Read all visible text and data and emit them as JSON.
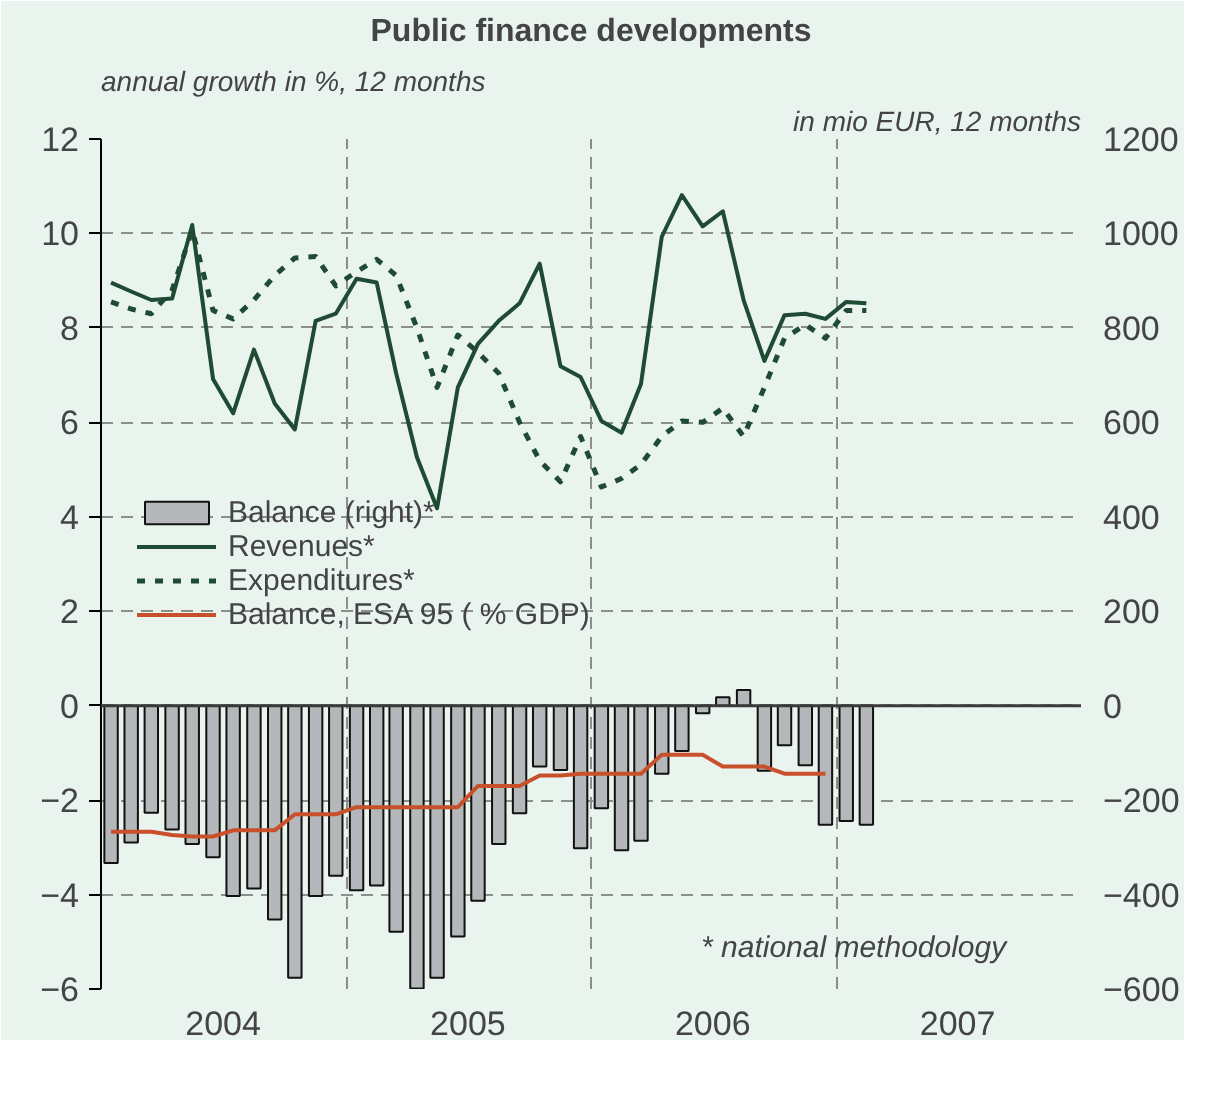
{
  "chart_data": {
    "type": "line",
    "title": "Public finance developments",
    "ylabel": "annual growth in %, 12 months",
    "y2label": "in mio EUR, 12 months",
    "annotations": [
      "* national methodology"
    ],
    "x": [
      "2004-01-16",
      "2004-02-15",
      "2004-03-16",
      "2004-04-16",
      "2004-05-16",
      "2004-06-16",
      "2004-07-16",
      "2004-08-16",
      "2004-09-16",
      "2004-10-16",
      "2004-11-16",
      "2004-12-16",
      "2005-01-16",
      "2005-02-15",
      "2005-03-16",
      "2005-04-16",
      "2005-05-16",
      "2005-06-16",
      "2005-07-16",
      "2005-08-16",
      "2005-09-16",
      "2005-10-16",
      "2005-11-16",
      "2005-12-16",
      "2006-01-16",
      "2006-02-15",
      "2006-03-16",
      "2006-04-16",
      "2006-05-16",
      "2006-06-16",
      "2006-07-16",
      "2006-08-16",
      "2006-09-16",
      "2006-10-16",
      "2006-11-16",
      "2006-12-16",
      "2007-01-16",
      "2007-02-15"
    ],
    "xlim": [
      "2004-01",
      "2008-01"
    ],
    "xticks": [
      {
        "value": "2004-07",
        "label": "2004"
      },
      {
        "value": "2005-07",
        "label": "2005"
      },
      {
        "value": "2006-07",
        "label": "2006"
      },
      {
        "value": "2007-07",
        "label": "2007"
      },
      {
        "value": "2005-01",
        "label": null
      },
      {
        "value": "2006-01",
        "label": null
      },
      {
        "value": "2007-01",
        "label": null
      },
      {
        "value": "2008-01",
        "label": null
      }
    ],
    "ylim": [
      -6,
      12
    ],
    "yticks": [
      -6,
      -4,
      -2,
      0,
      2,
      4,
      6,
      8,
      10,
      12
    ],
    "y2lim": [
      -600,
      1200
    ],
    "y2ticks": [
      -600,
      -400,
      -200,
      0,
      200,
      400,
      600,
      800,
      1000,
      1200
    ],
    "grid": true,
    "legend": "left",
    "ref_lines": [
      {
        "axis": "y",
        "value": 0,
        "color": "#3a3a3a"
      }
    ],
    "series": [
      {
        "name": "Balance (right)*",
        "type": "bar",
        "axis": "y2",
        "color": "#b4b8bb",
        "values": [
          -333,
          -290,
          -227,
          -262,
          -293,
          -321,
          -403,
          -387,
          -453,
          -576,
          -403,
          -360,
          -391,
          -381,
          -479,
          -599,
          -576,
          -489,
          -413,
          -293,
          -228,
          -129,
          -136,
          -302,
          -217,
          -306,
          -286,
          -144,
          -96,
          -16,
          18,
          33,
          -138,
          -84,
          -126,
          -252,
          -244,
          -252
        ]
      },
      {
        "name": "Revenues*",
        "color": "#1f4a33",
        "line_style": "solid",
        "values": [
          8.96,
          8.77,
          8.59,
          8.62,
          10.18,
          6.92,
          6.19,
          7.54,
          6.4,
          5.85,
          8.15,
          8.3,
          9.04,
          8.96,
          7.04,
          5.26,
          4.18,
          6.74,
          7.66,
          8.15,
          8.52,
          9.36,
          7.19,
          6.96,
          6.03,
          5.78,
          6.81,
          9.93,
          10.81,
          10.15,
          10.47,
          8.59,
          7.3,
          8.27,
          8.3,
          8.19,
          8.55,
          8.52
        ]
      },
      {
        "name": "Expenditures*",
        "color": "#1f4a33",
        "line_style": "dashed",
        "values": [
          8.55,
          8.4,
          8.3,
          8.8,
          10.07,
          8.37,
          8.19,
          8.59,
          9.11,
          9.48,
          9.51,
          8.89,
          9.19,
          9.45,
          9.11,
          8.0,
          6.74,
          7.85,
          7.48,
          7.04,
          6.0,
          5.19,
          4.74,
          5.7,
          4.63,
          4.81,
          5.11,
          5.7,
          6.03,
          6.0,
          6.3,
          5.7,
          6.74,
          7.78,
          8.07,
          7.78,
          8.37,
          8.37
        ]
      },
      {
        "name": "Balance, ESA 95 ( % GDP)",
        "color": "#c8502a",
        "line_style": "solid",
        "values": [
          -2.67,
          -2.67,
          -2.67,
          -2.74,
          -2.77,
          -2.77,
          -2.64,
          -2.64,
          -2.64,
          -2.3,
          -2.3,
          -2.3,
          -2.15,
          -2.15,
          -2.15,
          -2.15,
          -2.15,
          -2.15,
          -1.7,
          -1.7,
          -1.7,
          -1.48,
          -1.48,
          -1.44,
          -1.44,
          -1.44,
          -1.44,
          -1.04,
          -1.04,
          -1.04,
          -1.29,
          -1.29,
          -1.29,
          -1.44,
          -1.44,
          -1.44,
          null,
          null
        ]
      }
    ]
  }
}
